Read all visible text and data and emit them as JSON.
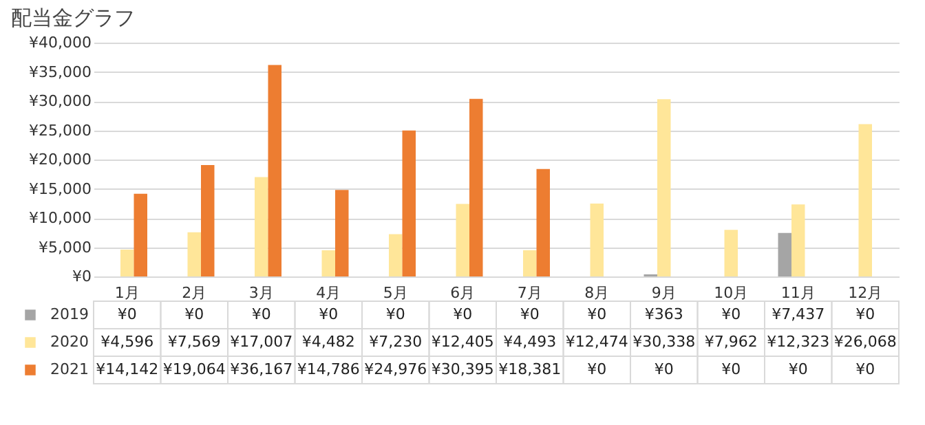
{
  "chart_data": {
    "type": "bar",
    "title": "配当金グラフ",
    "categories": [
      "1月",
      "2月",
      "3月",
      "4月",
      "5月",
      "6月",
      "7月",
      "8月",
      "9月",
      "10月",
      "11月",
      "12月"
    ],
    "series": [
      {
        "name": "2019",
        "color": "#a5a5a5",
        "values": [
          0,
          0,
          0,
          0,
          0,
          0,
          0,
          0,
          363,
          0,
          7437,
          0
        ],
        "value_labels": [
          "¥0",
          "¥0",
          "¥0",
          "¥0",
          "¥0",
          "¥0",
          "¥0",
          "¥0",
          "¥363",
          "¥0",
          "¥7,437",
          "¥0"
        ]
      },
      {
        "name": "2020",
        "color": "#ffe699",
        "values": [
          4596,
          7569,
          17007,
          4482,
          7230,
          12405,
          4493,
          12474,
          30338,
          7962,
          12323,
          26068
        ],
        "value_labels": [
          "¥4,596",
          "¥7,569",
          "¥17,007",
          "¥4,482",
          "¥7,230",
          "¥12,405",
          "¥4,493",
          "¥12,474",
          "¥30,338",
          "¥7,962",
          "¥12,323",
          "¥26,068"
        ]
      },
      {
        "name": "2021",
        "color": "#ed7d31",
        "values": [
          14142,
          19064,
          36167,
          14786,
          24976,
          30395,
          18381,
          0,
          0,
          0,
          0,
          0
        ],
        "value_labels": [
          "¥14,142",
          "¥19,064",
          "¥36,167",
          "¥14,786",
          "¥24,976",
          "¥30,395",
          "¥18,381",
          "¥0",
          "¥0",
          "¥0",
          "¥0",
          "¥0"
        ]
      }
    ],
    "ylim": [
      0,
      40000
    ],
    "yticks": [
      {
        "value": 0,
        "label": "¥0"
      },
      {
        "value": 5000,
        "label": "¥5,000"
      },
      {
        "value": 10000,
        "label": "¥10,000"
      },
      {
        "value": 15000,
        "label": "¥15,000"
      },
      {
        "value": 20000,
        "label": "¥20,000"
      },
      {
        "value": 25000,
        "label": "¥25,000"
      },
      {
        "value": 30000,
        "label": "¥30,000"
      },
      {
        "value": 35000,
        "label": "¥35,000"
      },
      {
        "value": 40000,
        "label": "¥40,000"
      }
    ],
    "grid": "y",
    "legend": "bottom"
  }
}
